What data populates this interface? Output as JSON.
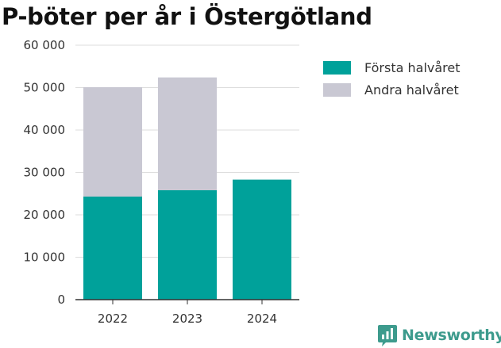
{
  "chart_data": {
    "type": "bar",
    "stacked": true,
    "title": "P-böter per år i Östergötland",
    "xlabel": "",
    "ylabel": "",
    "categories": [
      "2022",
      "2023",
      "2024"
    ],
    "series": [
      {
        "name": "Första halvåret",
        "color": "#00a19a",
        "values": [
          24300,
          25800,
          28300
        ]
      },
      {
        "name": "Andra halvåret",
        "color": "#c9c8d3",
        "values": [
          25800,
          26600,
          null
        ]
      }
    ],
    "ylim": [
      0,
      60000
    ],
    "yticks": [
      0,
      10000,
      20000,
      30000,
      40000,
      50000,
      60000
    ],
    "ytick_labels": [
      "0",
      "10 000",
      "20 000",
      "30 000",
      "40 000",
      "50 000",
      "60 000"
    ],
    "grid": true,
    "legend_position": "right"
  },
  "branding": {
    "name": "Newsworthy",
    "color": "#3d9b8d",
    "icon": "newsworthy-logo-icon"
  }
}
